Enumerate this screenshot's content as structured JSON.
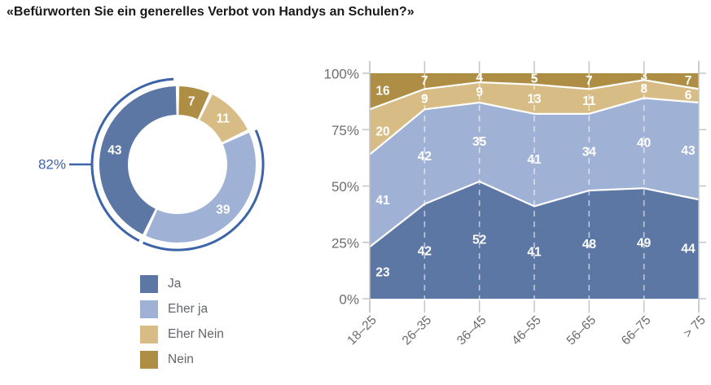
{
  "title": "«Befürworten Sie ein generelles Verbot von Handys an Schulen?»",
  "colors": {
    "ja": "#5d77a4",
    "eher_ja": "#9fb1d4",
    "eher_nein": "#d7bd85",
    "nein": "#ae8e44",
    "accent": "#3d63a9",
    "axis_text": "#6d6e71",
    "axis_line": "#c4c5c7",
    "value_text": "#ffffff"
  },
  "legend": {
    "items": [
      {
        "label": "Ja",
        "color": "#5d77a4"
      },
      {
        "label": "Eher ja",
        "color": "#9fb1d4"
      },
      {
        "label": "Eher Nein",
        "color": "#d7bd85"
      },
      {
        "label": "Nein",
        "color": "#ae8e44"
      }
    ]
  },
  "chart_data": [
    {
      "type": "pie",
      "subtype": "donut",
      "direction": "clockwise",
      "start_angle_deg": 0,
      "segments": [
        {
          "label": "Nein",
          "value": 7,
          "color": "#ae8e44"
        },
        {
          "label": "Eher Nein",
          "value": 11,
          "color": "#d7bd85"
        },
        {
          "label": "Eher ja",
          "value": 39,
          "color": "#9fb1d4"
        },
        {
          "label": "Ja",
          "value": 43,
          "color": "#5d77a4"
        }
      ],
      "highlight": {
        "label": "82%",
        "value": 82,
        "covers": [
          "Ja",
          "Eher ja"
        ]
      }
    },
    {
      "type": "area",
      "stacked": true,
      "categories": [
        "18–25",
        "26–35",
        "36–45",
        "46–55",
        "56–65",
        "66–75",
        "> 75"
      ],
      "series": [
        {
          "name": "Ja",
          "color": "#5d77a4",
          "values": [
            23,
            42,
            52,
            41,
            48,
            49,
            44
          ]
        },
        {
          "name": "Eher ja",
          "color": "#9fb1d4",
          "values": [
            41,
            42,
            35,
            41,
            34,
            40,
            43
          ]
        },
        {
          "name": "Eher Nein",
          "color": "#d7bd85",
          "values": [
            20,
            9,
            9,
            13,
            11,
            8,
            6
          ]
        },
        {
          "name": "Nein",
          "color": "#ae8e44",
          "values": [
            16,
            7,
            4,
            5,
            7,
            3,
            7
          ]
        }
      ],
      "yticks": [
        {
          "label": "0%",
          "value": 0
        },
        {
          "label": "25%",
          "value": 25
        },
        {
          "label": "50%",
          "value": 50
        },
        {
          "label": "75%",
          "value": 75
        },
        {
          "label": "100%",
          "value": 100
        }
      ],
      "ylim": [
        0,
        100
      ],
      "grid": "vertical-dashed",
      "legend_position": "bottom-left"
    }
  ]
}
